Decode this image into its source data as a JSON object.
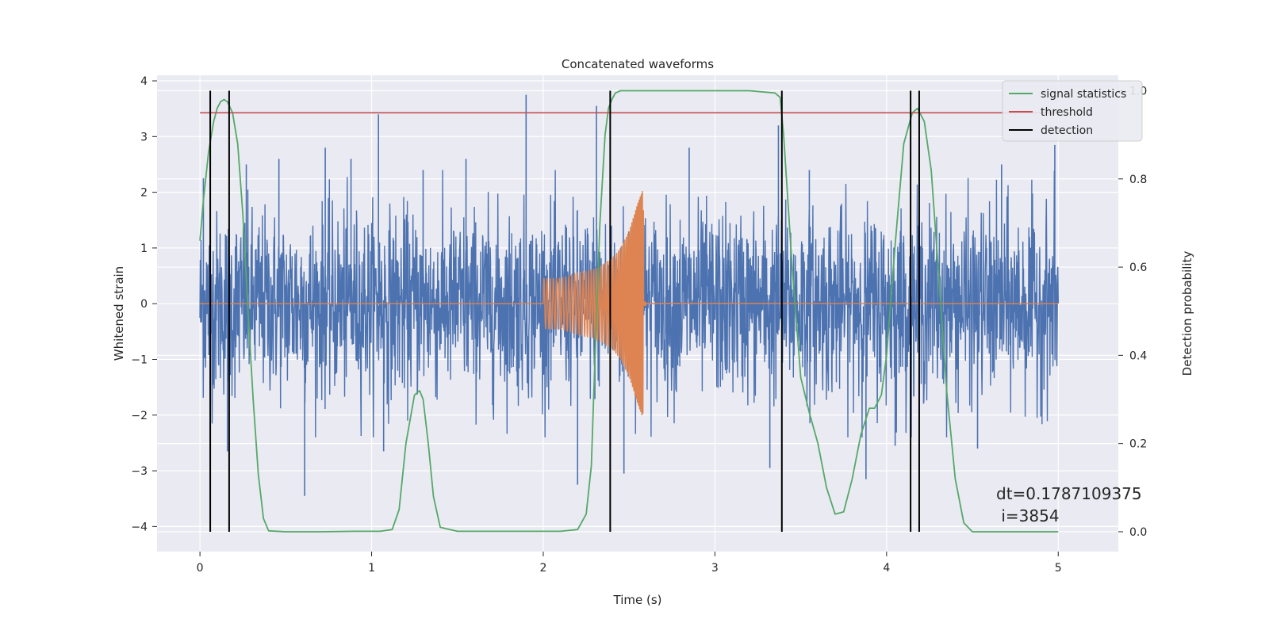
{
  "chart_data": {
    "type": "line",
    "title": "Concatenated waveforms",
    "xlabel": "Time (s)",
    "ylabel": "Whitened strain",
    "y2label": "Detection probability",
    "xlim": [
      -0.25,
      5.35
    ],
    "ylim": [
      -4.45,
      4.1
    ],
    "y2lim": [
      -0.045,
      1.035
    ],
    "xticks": [
      0,
      1,
      2,
      3,
      4,
      5
    ],
    "yticks": [
      -4,
      -3,
      -2,
      -1,
      0,
      1,
      2,
      3,
      4
    ],
    "y2ticks": [
      0.0,
      0.2,
      0.4,
      0.6,
      0.8,
      1.0
    ],
    "grid": true,
    "legend_position": "top-right",
    "colors": {
      "background": "#eaeaf2",
      "grid": "#ffffff",
      "noise": "#4c72b0",
      "injection": "#dd8452",
      "signal": "#55a868",
      "threshold": "#c44e52",
      "detection": "#000000"
    },
    "series": [
      {
        "name": "",
        "axis": "left",
        "kind": "noise",
        "x_range": [
          0,
          5
        ],
        "amplitude_envelope": 1.0,
        "peak_values": [
          {
            "x": 0.02,
            "y": 2.25
          },
          {
            "x": 0.27,
            "y": 2.5
          },
          {
            "x": 0.46,
            "y": 2.6
          },
          {
            "x": 0.73,
            "y": 2.8
          },
          {
            "x": 0.88,
            "y": 2.6
          },
          {
            "x": 1.04,
            "y": 3.4
          },
          {
            "x": 1.3,
            "y": 2.4
          },
          {
            "x": 1.55,
            "y": 2.6
          },
          {
            "x": 1.9,
            "y": 3.75
          },
          {
            "x": 2.31,
            "y": 3.55
          },
          {
            "x": 2.85,
            "y": 2.8
          },
          {
            "x": 3.37,
            "y": 3.2
          },
          {
            "x": 3.55,
            "y": 2.4
          },
          {
            "x": 4.67,
            "y": 2.5
          },
          {
            "x": 4.98,
            "y": 2.85
          },
          {
            "x": 0.61,
            "y": -3.45
          },
          {
            "x": 2.2,
            "y": -3.25
          },
          {
            "x": 2.47,
            "y": -3.05
          },
          {
            "x": 3.32,
            "y": -2.95
          },
          {
            "x": 3.88,
            "y": -3.15
          },
          {
            "x": 4.53,
            "y": -2.6
          },
          {
            "x": 0.16,
            "y": -2.65
          },
          {
            "x": 1.07,
            "y": -2.65
          },
          {
            "x": 4.05,
            "y": -2.55
          }
        ]
      },
      {
        "name": "",
        "axis": "left",
        "kind": "chirp",
        "x": [
          0,
          2.0,
          2.1,
          2.2,
          2.3,
          2.4,
          2.45,
          2.5,
          2.55,
          2.58,
          2.6,
          5.0
        ],
        "amplitude": [
          0,
          0.45,
          0.45,
          0.55,
          0.62,
          0.8,
          1.0,
          1.3,
          1.8,
          2.05,
          0.04,
          0
        ]
      },
      {
        "name": "signal statistics",
        "axis": "right",
        "x": [
          0,
          0.02,
          0.05,
          0.08,
          0.1,
          0.12,
          0.14,
          0.16,
          0.19,
          0.22,
          0.25,
          0.28,
          0.31,
          0.34,
          0.37,
          0.4,
          0.5,
          0.7,
          0.9,
          1.05,
          1.12,
          1.16,
          1.2,
          1.25,
          1.28,
          1.3,
          1.33,
          1.36,
          1.4,
          1.5,
          1.8,
          2.1,
          2.2,
          2.25,
          2.28,
          2.3,
          2.33,
          2.36,
          2.38,
          2.4,
          2.42,
          2.45,
          2.5,
          2.8,
          3.2,
          3.35,
          3.38,
          3.4,
          3.45,
          3.5,
          3.55,
          3.6,
          3.65,
          3.7,
          3.75,
          3.8,
          3.85,
          3.9,
          3.93,
          3.97,
          4.0,
          4.05,
          4.1,
          4.15,
          4.18,
          4.22,
          4.26,
          4.3,
          4.35,
          4.4,
          4.45,
          4.5,
          4.6,
          4.8,
          5.0
        ],
        "values": [
          0.66,
          0.75,
          0.86,
          0.93,
          0.96,
          0.975,
          0.98,
          0.975,
          0.95,
          0.88,
          0.72,
          0.5,
          0.3,
          0.13,
          0.03,
          0.002,
          0.0,
          0.0,
          0.001,
          0.001,
          0.005,
          0.05,
          0.2,
          0.31,
          0.32,
          0.3,
          0.2,
          0.08,
          0.01,
          0.001,
          0.001,
          0.001,
          0.005,
          0.04,
          0.15,
          0.38,
          0.7,
          0.9,
          0.96,
          0.98,
          0.995,
          1.0,
          1.0,
          1.0,
          1.0,
          0.995,
          0.985,
          0.9,
          0.6,
          0.35,
          0.27,
          0.2,
          0.1,
          0.04,
          0.045,
          0.12,
          0.22,
          0.28,
          0.28,
          0.31,
          0.4,
          0.65,
          0.88,
          0.95,
          0.96,
          0.93,
          0.82,
          0.6,
          0.32,
          0.12,
          0.02,
          0.0,
          0.0,
          0.0,
          0.0
        ]
      },
      {
        "name": "threshold",
        "axis": "right",
        "x": [
          0,
          5
        ],
        "values": [
          0.95,
          0.95
        ]
      }
    ],
    "detections": {
      "name": "detection",
      "x": [
        0.06,
        0.17,
        2.39,
        3.39,
        4.14,
        4.19
      ],
      "y2_range": [
        0.0,
        1.0
      ]
    },
    "annotation": {
      "line1": "dt=0.1787109375",
      "line2": " i=3854"
    }
  }
}
